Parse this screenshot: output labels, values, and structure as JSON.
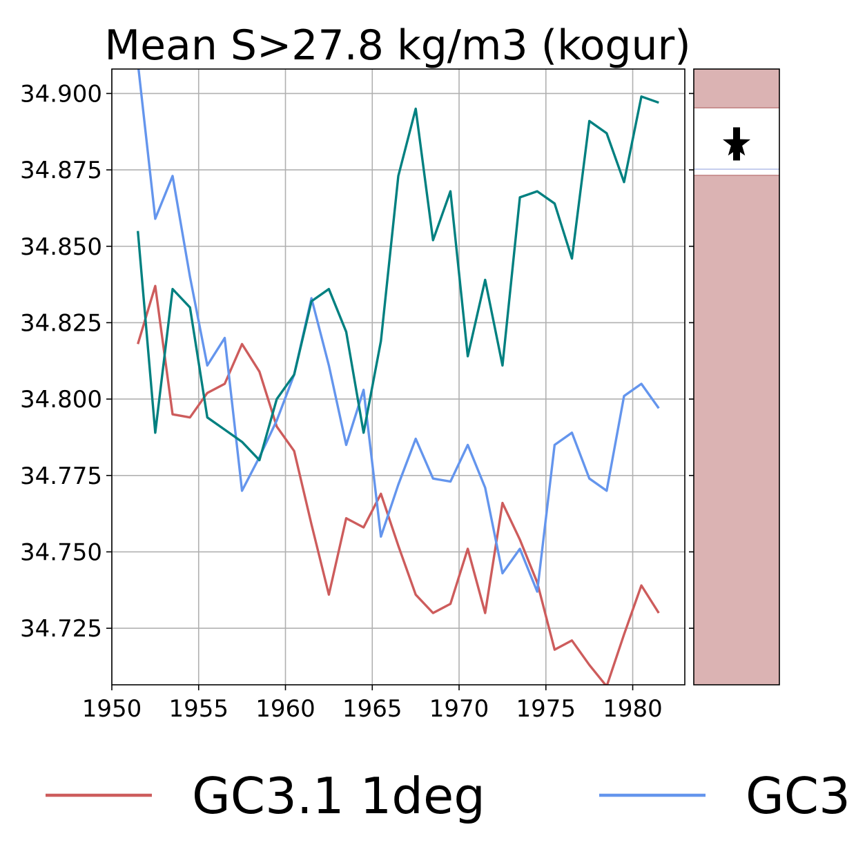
{
  "chart_data": [
    {
      "type": "line",
      "title": "Mean S>27.8 kg/m3 (kogur)",
      "xlabel": "",
      "ylabel": "",
      "xlim": [
        1950,
        1983
      ],
      "ylim": [
        34.7065,
        34.908
      ],
      "grid": true,
      "x_ticks": [
        "1950",
        "1955",
        "1960",
        "1965",
        "1970",
        "1975",
        "1980"
      ],
      "y_ticks": [
        "34.725",
        "34.750",
        "34.775",
        "34.800",
        "34.825",
        "34.850",
        "34.875",
        "34.900"
      ],
      "x": [
        1951.5,
        1952.5,
        1953.5,
        1954.5,
        1955.5,
        1956.5,
        1957.5,
        1958.5,
        1959.5,
        1960.5,
        1961.5,
        1962.5,
        1963.5,
        1964.5,
        1965.5,
        1966.5,
        1967.5,
        1968.5,
        1969.5,
        1970.5,
        1971.5,
        1972.5,
        1973.5,
        1974.5,
        1975.5,
        1976.5,
        1977.5,
        1978.5,
        1979.5,
        1980.5,
        1981.5
      ],
      "series": [
        {
          "name": "GC3.1 1deg",
          "color": "#cd5c5c",
          "values": [
            34.818,
            34.837,
            34.795,
            34.794,
            34.802,
            34.805,
            34.818,
            34.809,
            34.791,
            34.783,
            34.759,
            34.736,
            34.761,
            34.758,
            34.769,
            34.752,
            34.736,
            34.73,
            34.733,
            34.751,
            34.73,
            34.766,
            34.754,
            34.74,
            34.718,
            34.721,
            34.713,
            34.706,
            34.723,
            34.739,
            34.73
          ]
        },
        {
          "name": "GC3",
          "color": "#6495ed",
          "values": [
            34.91,
            34.859,
            34.873,
            34.84,
            34.811,
            34.82,
            34.77,
            34.781,
            34.793,
            34.808,
            34.833,
            34.811,
            34.785,
            34.803,
            34.755,
            34.772,
            34.787,
            34.774,
            34.773,
            34.785,
            34.771,
            34.743,
            34.751,
            34.737,
            34.785,
            34.789,
            34.774,
            34.77,
            34.801,
            34.805,
            34.797
          ]
        },
        {
          "name": "",
          "color": "#008080",
          "values": [
            34.855,
            34.789,
            34.836,
            34.83,
            34.794,
            34.79,
            34.786,
            34.78,
            34.8,
            34.808,
            34.832,
            34.836,
            34.822,
            34.789,
            34.819,
            34.873,
            34.895,
            34.852,
            34.868,
            34.814,
            34.839,
            34.811,
            34.866,
            34.868,
            34.864,
            34.846,
            34.891,
            34.887,
            34.871,
            34.899,
            34.897
          ]
        }
      ],
      "legend": {
        "placement": "bottom"
      }
    },
    {
      "type": "range-band",
      "ylim": [
        34.7065,
        34.908
      ],
      "band_color": "#dbb3b3",
      "band_low": 34.8732,
      "band_high": 34.8953,
      "marker": "star",
      "marker_value": 34.8835,
      "marker_color": "#000000"
    }
  ]
}
